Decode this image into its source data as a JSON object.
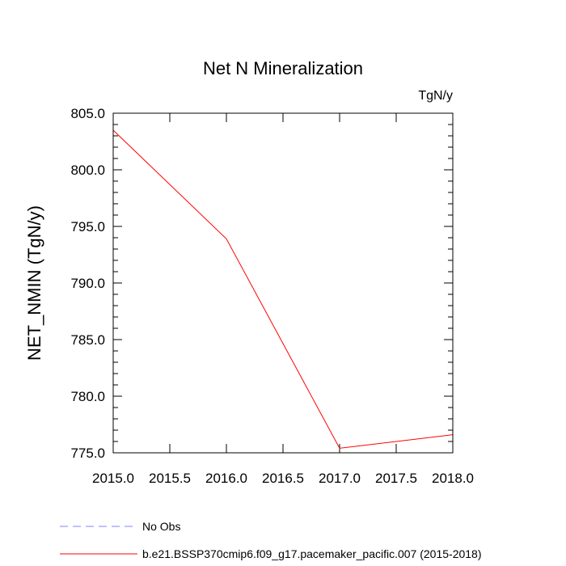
{
  "chart_data": {
    "type": "line",
    "title": "Net N Mineralization",
    "units_label": "TgN/y",
    "xlabel": "",
    "ylabel": "NET_NMIN  (TgN/y)",
    "xlim": [
      2015.0,
      2018.0
    ],
    "ylim": [
      775.0,
      805.0
    ],
    "x_ticks": [
      2015.0,
      2015.5,
      2016.0,
      2016.5,
      2017.0,
      2017.5,
      2018.0
    ],
    "x_tick_labels": [
      "2015.0",
      "2015.5",
      "2016.0",
      "2016.5",
      "2017.0",
      "2017.5",
      "2018.0"
    ],
    "y_ticks": [
      775.0,
      780.0,
      785.0,
      790.0,
      795.0,
      800.0,
      805.0
    ],
    "y_tick_labels": [
      "775.0",
      "780.0",
      "785.0",
      "790.0",
      "795.0",
      "800.0",
      "805.0"
    ],
    "series": [
      {
        "name": "b.e21.BSSP370cmip6.f09_g17.pacemaker_pacific.007 (2015-2018)",
        "color": "#ff0000",
        "dash": "solid",
        "x": [
          2015.0,
          2016.0,
          2017.0,
          2018.0
        ],
        "values": [
          803.5,
          793.9,
          775.4,
          776.6
        ]
      }
    ],
    "legend": [
      {
        "label": "No Obs",
        "color": "#8080ff",
        "dash": "dashed"
      },
      {
        "label": "b.e21.BSSP370cmip6.f09_g17.pacemaker_pacific.007 (2015-2018)",
        "color": "#ff0000",
        "dash": "solid"
      }
    ],
    "legend_position": "bottom-left",
    "grid": false
  }
}
